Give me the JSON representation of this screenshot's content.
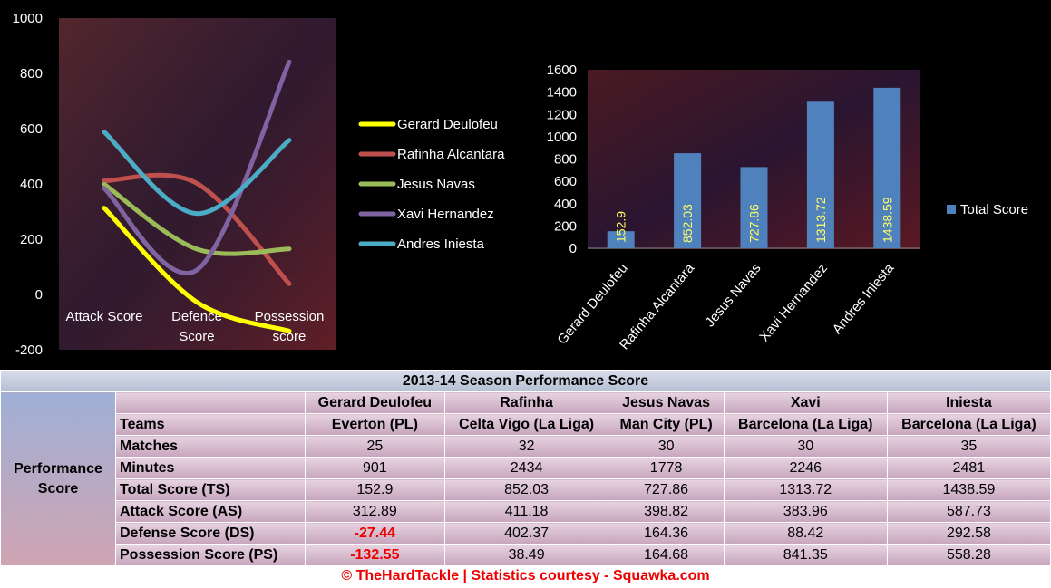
{
  "chart_data": [
    {
      "type": "line",
      "categories": [
        "Attack Score",
        "Defence Score",
        "Possession score"
      ],
      "ylim": [
        -200,
        1000
      ],
      "yticks": [
        1000,
        800,
        600,
        400,
        200,
        0,
        -200
      ],
      "series": [
        {
          "name": "Gerard Deulofeu",
          "color": "#ffff00",
          "values": [
            312.89,
            -27.44,
            -132.55
          ]
        },
        {
          "name": "Rafinha Alcantara",
          "color": "#c0504d",
          "values": [
            411.18,
            402.37,
            38.49
          ]
        },
        {
          "name": "Jesus Navas",
          "color": "#9bbb59",
          "values": [
            398.82,
            164.36,
            164.68
          ]
        },
        {
          "name": "Xavi Hernandez",
          "color": "#8064a2",
          "values": [
            383.96,
            88.42,
            841.35
          ]
        },
        {
          "name": "Andres Iniesta",
          "color": "#4bacc6",
          "values": [
            587.73,
            292.58,
            558.28
          ]
        }
      ]
    },
    {
      "type": "bar",
      "categories": [
        "Gerard Deulofeu",
        "Rafinha Alcantara",
        "Jesus Navas",
        "Xavi Hernandez",
        "Andres Iniesta"
      ],
      "values": [
        152.9,
        852.03,
        727.86,
        1313.72,
        1438.59
      ],
      "value_labels": [
        "152.9",
        "852.03",
        "727.86",
        "1313.72",
        "1438.59"
      ],
      "ylim": [
        0,
        1600
      ],
      "yticks": [
        1600,
        1400,
        1200,
        1000,
        800,
        600,
        400,
        200,
        0
      ],
      "series_name": "Total Score",
      "bar_color": "#4f81bd",
      "label_color": "#ffff66"
    }
  ],
  "table": {
    "title": "2013-14 Season Performance Score",
    "side_label": "Performance Score",
    "players": [
      "Gerard Deulofeu",
      "Rafinha",
      "Jesus Navas",
      "Xavi",
      "Iniesta"
    ],
    "rows": [
      {
        "label": "Teams",
        "values": [
          "Everton (PL)",
          "Celta Vigo (La Liga)",
          "Man City (PL)",
          "Barcelona (La Liga)",
          "Barcelona (La Liga)"
        ]
      },
      {
        "label": "Matches",
        "values": [
          "25",
          "32",
          "30",
          "30",
          "35"
        ]
      },
      {
        "label": "Minutes",
        "values": [
          "901",
          "2434",
          "1778",
          "2246",
          "2481"
        ]
      },
      {
        "label": "Total Score (TS)",
        "values": [
          "152.9",
          "852.03",
          "727.86",
          "1313.72",
          "1438.59"
        ]
      },
      {
        "label": "Attack Score (AS)",
        "values": [
          "312.89",
          "411.18",
          "398.82",
          "383.96",
          "587.73"
        ]
      },
      {
        "label": "Defense Score (DS)",
        "values": [
          "-27.44",
          "402.37",
          "164.36",
          "88.42",
          "292.58"
        ]
      },
      {
        "label": "Possession Score (PS)",
        "values": [
          "-132.55",
          "38.49",
          "164.68",
          "841.35",
          "558.28"
        ]
      }
    ],
    "negative_color": "#ee0000"
  },
  "footer": "© TheHardTackle | Statistics courtesy - Squawka.com"
}
